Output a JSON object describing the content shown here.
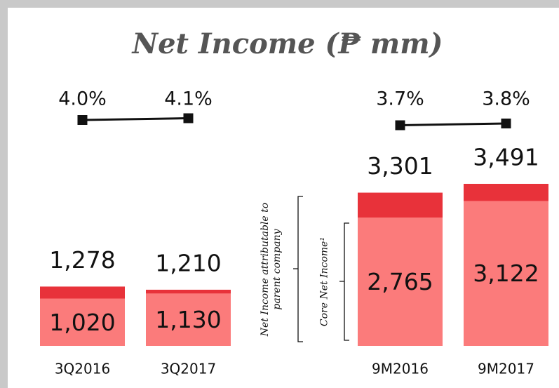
{
  "chart_data": {
    "type": "bar",
    "mode": "overlay",
    "title": "Net Income (₱ mm)",
    "categories": [
      "3Q2016",
      "3Q2017",
      null,
      "9M2016",
      "9M2017"
    ],
    "series": [
      {
        "name": "Net Income attributable to parent company",
        "color": "#e8323a",
        "values": [
          1278,
          1210,
          null,
          3301,
          3491
        ],
        "value_labels": [
          "1,278",
          "1,210",
          null,
          "3,301",
          "3,491"
        ]
      },
      {
        "name": "Core Net Income¹",
        "color": "#fb7b7b",
        "values": [
          1020,
          1130,
          null,
          2765,
          3122
        ],
        "value_labels": [
          "1,020",
          "1,130",
          null,
          "2,765",
          "3,122"
        ]
      }
    ],
    "margin_line": {
      "type": "line",
      "color": "#111",
      "values": [
        4.0,
        4.1,
        null,
        3.7,
        3.8
      ],
      "value_labels": [
        "4.0%",
        "4.1%",
        null,
        "3.7%",
        "3.8%"
      ]
    },
    "ylim": [
      0,
      3491
    ]
  }
}
